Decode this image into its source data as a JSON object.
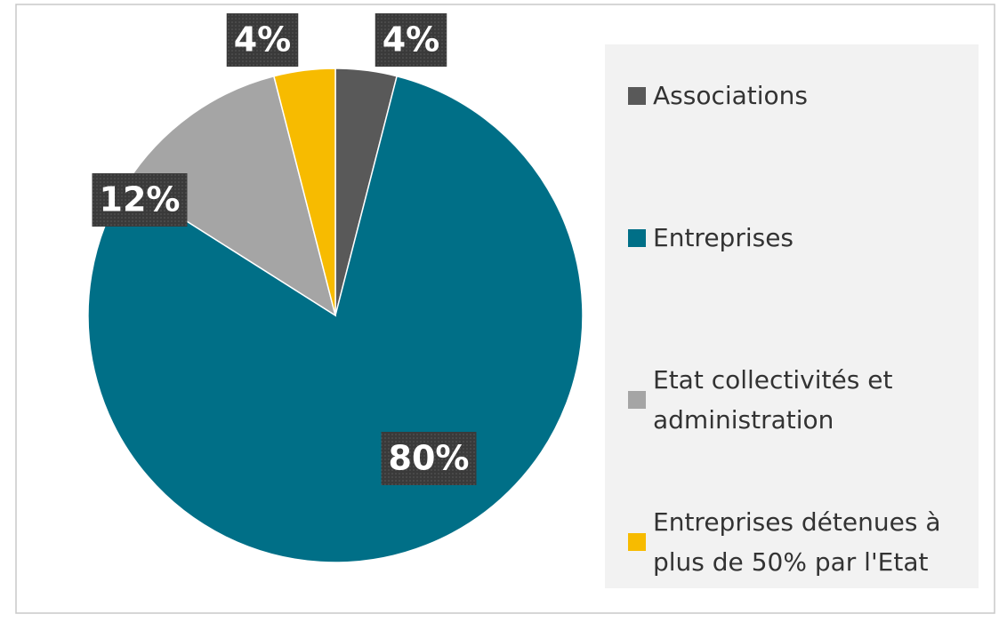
{
  "chart_data": {
    "type": "pie",
    "categories": [
      "Associations",
      "Entreprises",
      "Etat collectivités et administration",
      "Entreprises détenues à plus de 50% par l'Etat"
    ],
    "values": [
      4,
      80,
      12,
      4
    ],
    "value_labels": [
      "4%",
      "80%",
      "12%",
      "4%"
    ],
    "colors": [
      "#595959",
      "#006f87",
      "#a5a5a5",
      "#f7bb00"
    ],
    "legend": "right"
  }
}
